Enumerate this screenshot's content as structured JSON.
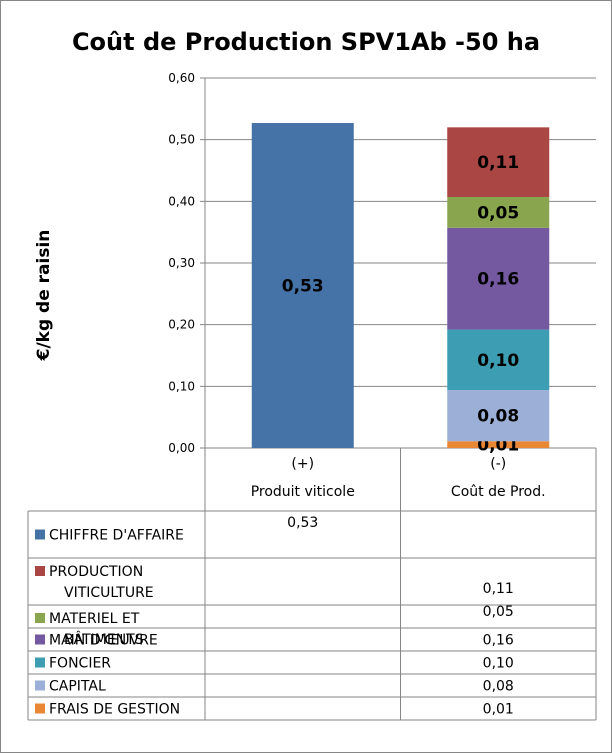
{
  "chart_data": {
    "type": "bar",
    "title": "Coût de Production SPV1Ab -50 ha",
    "ylabel": "€/kg de raisin",
    "xlabel": "",
    "ylim": [
      0,
      0.6
    ],
    "yticks": [
      "0,00",
      "0,10",
      "0,20",
      "0,30",
      "0,40",
      "0,50",
      "0,60"
    ],
    "stacked": true,
    "grid": true,
    "categories": [
      {
        "sign": "(+)",
        "name": "Produit viticole"
      },
      {
        "sign": "(-)",
        "name": "Coût de Prod."
      }
    ],
    "series": [
      {
        "name": "CHIFFRE D'AFFAIRE",
        "color": "#4572a7",
        "values": [
          0.527,
          null
        ],
        "labels": [
          "0,53",
          ""
        ]
      },
      {
        "name": "FRAIS DE GESTION",
        "color": "#e98734",
        "values": [
          null,
          0.011
        ],
        "labels": [
          "",
          "0,01"
        ]
      },
      {
        "name": "CAPITAL",
        "color": "#9cb0d7",
        "values": [
          null,
          0.083
        ],
        "labels": [
          "",
          "0,08"
        ]
      },
      {
        "name": "FONCIER",
        "color": "#3d9eb3",
        "values": [
          null,
          0.098
        ],
        "labels": [
          "",
          "0,10"
        ]
      },
      {
        "name": "MAIN D'ŒUVRE",
        "color": "#7459a0",
        "values": [
          null,
          0.165
        ],
        "labels": [
          "",
          "0,16"
        ]
      },
      {
        "name": "MATERIEL ET BÂTIMENTS",
        "color": "#89a54e",
        "values": [
          null,
          0.05
        ],
        "labels": [
          "",
          "0,05"
        ]
      },
      {
        "name": "PRODUCTION VITICULTURE",
        "color": "#aa4643",
        "values": [
          null,
          0.113
        ],
        "labels": [
          "",
          "0,11"
        ]
      }
    ],
    "table": [
      {
        "legend_lines": [
          "CHIFFRE D'AFFAIRE"
        ],
        "color": "#4572a7",
        "cells": [
          "0,53",
          ""
        ]
      },
      {
        "legend_lines": [
          "PRODUCTION",
          "VITICULTURE"
        ],
        "color": "#aa4643",
        "cells": [
          "",
          "0,11"
        ]
      },
      {
        "legend_lines": [
          "MATERIEL ET",
          "BÂTIMENTS"
        ],
        "color": "#89a54e",
        "cells": [
          "",
          "0,05"
        ]
      },
      {
        "legend_lines": [
          "MAIN D'ŒUVRE"
        ],
        "color": "#7459a0",
        "cells": [
          "",
          "0,16"
        ]
      },
      {
        "legend_lines": [
          "FONCIER"
        ],
        "color": "#3d9eb3",
        "cells": [
          "",
          "0,10"
        ]
      },
      {
        "legend_lines": [
          "CAPITAL"
        ],
        "color": "#9cb0d7",
        "cells": [
          "",
          "0,08"
        ]
      },
      {
        "legend_lines": [
          "FRAIS DE GESTION"
        ],
        "color": "#e98734",
        "cells": [
          "",
          "0,01"
        ]
      }
    ]
  }
}
